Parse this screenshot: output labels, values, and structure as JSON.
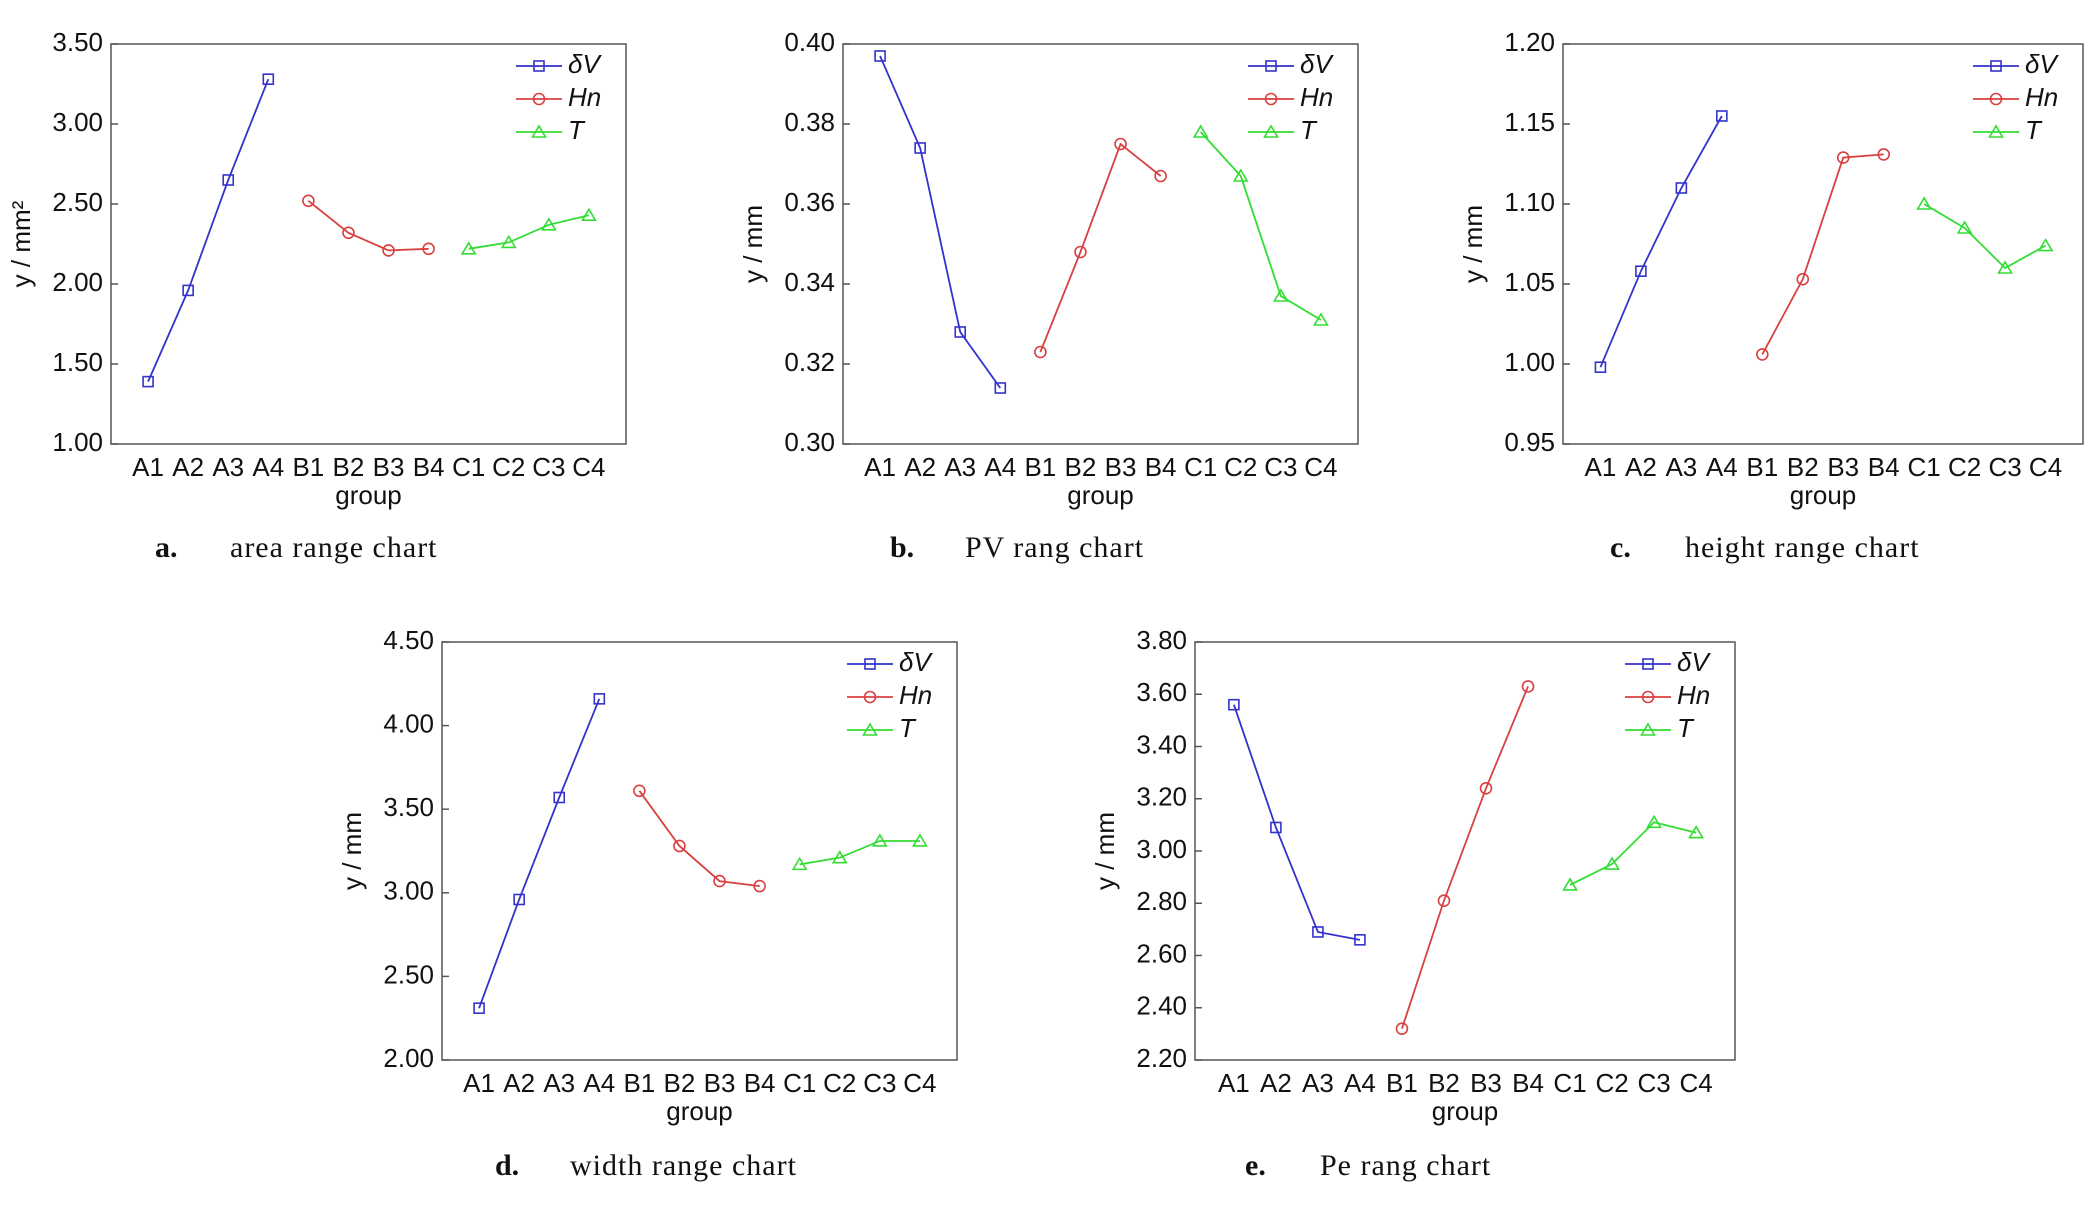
{
  "chart_data": [
    {
      "type": "line",
      "label": "a.",
      "title": "area range chart",
      "xlabel": "group",
      "ylabel": "y / mm²",
      "categories": [
        "A1",
        "A2",
        "A3",
        "A4",
        "B1",
        "B2",
        "B3",
        "B4",
        "C1",
        "C2",
        "C3",
        "C4"
      ],
      "ylim": [
        1,
        3.5
      ],
      "yticks": [
        {
          "value": 1,
          "label": "1.00"
        },
        {
          "value": 1.5,
          "label": "1.50"
        },
        {
          "value": 2,
          "label": "2.00"
        },
        {
          "value": 2.5,
          "label": "2.50"
        },
        {
          "value": 3,
          "label": "3.00"
        },
        {
          "value": 3.5,
          "label": "3.50"
        }
      ],
      "legend": "upper right",
      "series": [
        {
          "name": "δV",
          "color": "#3333cc",
          "marker": "square",
          "values": [
            1.39,
            1.96,
            2.65,
            3.28,
            null,
            null,
            null,
            null,
            null,
            null,
            null,
            null
          ]
        },
        {
          "name": "Hn",
          "color": "#d94040",
          "marker": "circle",
          "values": [
            null,
            null,
            null,
            null,
            2.52,
            2.32,
            2.21,
            2.22,
            null,
            null,
            null,
            null
          ]
        },
        {
          "name": "T",
          "color": "#33dd33",
          "marker": "triangle",
          "values": [
            null,
            null,
            null,
            null,
            null,
            null,
            null,
            null,
            2.22,
            2.26,
            2.37,
            2.43
          ]
        }
      ]
    },
    {
      "type": "line",
      "label": "b.",
      "title": "PV rang chart",
      "xlabel": "group",
      "ylabel": "y / mm",
      "categories": [
        "A1",
        "A2",
        "A3",
        "A4",
        "B1",
        "B2",
        "B3",
        "B4",
        "C1",
        "C2",
        "C3",
        "C4"
      ],
      "ylim": [
        0.3,
        0.4
      ],
      "yticks": [
        {
          "value": 0.3,
          "label": "0.30"
        },
        0.32,
        0.34,
        0.36,
        0.38,
        {
          "value": 0.4,
          "label": "0.40"
        }
      ],
      "legend": "upper right",
      "series": [
        {
          "name": "δV",
          "color": "#3333cc",
          "marker": "square",
          "values": [
            0.397,
            0.374,
            0.328,
            0.314,
            null,
            null,
            null,
            null,
            null,
            null,
            null,
            null
          ]
        },
        {
          "name": "Hn",
          "color": "#d94040",
          "marker": "circle",
          "values": [
            null,
            null,
            null,
            null,
            0.323,
            0.348,
            0.375,
            0.367,
            null,
            null,
            null,
            null
          ]
        },
        {
          "name": "T",
          "color": "#33dd33",
          "marker": "triangle",
          "values": [
            null,
            null,
            null,
            null,
            null,
            null,
            null,
            null,
            0.378,
            0.367,
            0.337,
            0.331
          ]
        }
      ]
    },
    {
      "type": "line",
      "label": "c.",
      "title": "height range chart",
      "xlabel": "group",
      "ylabel": "y / mm",
      "categories": [
        "A1",
        "A2",
        "A3",
        "A4",
        "B1",
        "B2",
        "B3",
        "B4",
        "C1",
        "C2",
        "C3",
        "C4"
      ],
      "ylim": [
        0.95,
        1.2
      ],
      "yticks": [
        0.95,
        {
          "value": 1,
          "label": "1.00"
        },
        1.05,
        {
          "value": 1.1,
          "label": "1.10"
        },
        1.15,
        {
          "value": 1.2,
          "label": "1.20"
        }
      ],
      "legend": "upper right",
      "series": [
        {
          "name": "δV",
          "color": "#3333cc",
          "marker": "square",
          "values": [
            0.998,
            1.058,
            1.11,
            1.155,
            null,
            null,
            null,
            null,
            null,
            null,
            null,
            null
          ]
        },
        {
          "name": "Hn",
          "color": "#d94040",
          "marker": "circle",
          "values": [
            null,
            null,
            null,
            null,
            1.006,
            1.053,
            1.129,
            1.131,
            null,
            null,
            null,
            null
          ]
        },
        {
          "name": "T",
          "color": "#33dd33",
          "marker": "triangle",
          "values": [
            null,
            null,
            null,
            null,
            null,
            null,
            null,
            null,
            1.1,
            1.085,
            1.06,
            1.074
          ]
        }
      ]
    },
    {
      "type": "line",
      "label": "d.",
      "title": "width range chart",
      "xlabel": "group",
      "ylabel": "y / mm",
      "categories": [
        "A1",
        "A2",
        "A3",
        "A4",
        "B1",
        "B2",
        "B3",
        "B4",
        "C1",
        "C2",
        "C3",
        "C4"
      ],
      "ylim": [
        2,
        4.5
      ],
      "yticks": [
        {
          "value": 2,
          "label": "2.00"
        },
        {
          "value": 2.5,
          "label": "2.50"
        },
        {
          "value": 3,
          "label": "3.00"
        },
        {
          "value": 3.5,
          "label": "3.50"
        },
        {
          "value": 4,
          "label": "4.00"
        },
        {
          "value": 4.5,
          "label": "4.50"
        }
      ],
      "legend": "upper right",
      "series": [
        {
          "name": "δV",
          "color": "#3333cc",
          "marker": "square",
          "values": [
            2.31,
            2.96,
            3.57,
            4.16,
            null,
            null,
            null,
            null,
            null,
            null,
            null,
            null
          ]
        },
        {
          "name": "Hn",
          "color": "#d94040",
          "marker": "circle",
          "values": [
            null,
            null,
            null,
            null,
            3.61,
            3.28,
            3.07,
            3.04,
            null,
            null,
            null,
            null
          ]
        },
        {
          "name": "T",
          "color": "#33dd33",
          "marker": "triangle",
          "values": [
            null,
            null,
            null,
            null,
            null,
            null,
            null,
            null,
            3.17,
            3.21,
            3.31,
            3.31
          ]
        }
      ]
    },
    {
      "type": "line",
      "label": "e.",
      "title": "Pe rang chart",
      "xlabel": "group",
      "ylabel": "y / mm",
      "categories": [
        "A1",
        "A2",
        "A3",
        "A4",
        "B1",
        "B2",
        "B3",
        "B4",
        "C1",
        "C2",
        "C3",
        "C4"
      ],
      "ylim": [
        2.2,
        3.8
      ],
      "yticks": [
        {
          "value": 2.2,
          "label": "2.20"
        },
        {
          "value": 2.4,
          "label": "2.40"
        },
        {
          "value": 2.6,
          "label": "2.60"
        },
        {
          "value": 2.8,
          "label": "2.80"
        },
        {
          "value": 3,
          "label": "3.00"
        },
        {
          "value": 3.2,
          "label": "3.20"
        },
        {
          "value": 3.4,
          "label": "3.40"
        },
        {
          "value": 3.6,
          "label": "3.60"
        },
        {
          "value": 3.8,
          "label": "3.80"
        }
      ],
      "legend": "upper right",
      "series": [
        {
          "name": "δV",
          "color": "#3333cc",
          "marker": "square",
          "values": [
            3.56,
            3.09,
            2.69,
            2.66,
            null,
            null,
            null,
            null,
            null,
            null,
            null,
            null
          ]
        },
        {
          "name": "Hn",
          "color": "#d94040",
          "marker": "circle",
          "values": [
            null,
            null,
            null,
            null,
            2.32,
            2.81,
            3.24,
            3.63,
            null,
            null,
            null,
            null
          ]
        },
        {
          "name": "T",
          "color": "#33dd33",
          "marker": "triangle",
          "values": [
            null,
            null,
            null,
            null,
            null,
            null,
            null,
            null,
            2.87,
            2.95,
            3.11,
            3.07
          ]
        }
      ]
    }
  ]
}
